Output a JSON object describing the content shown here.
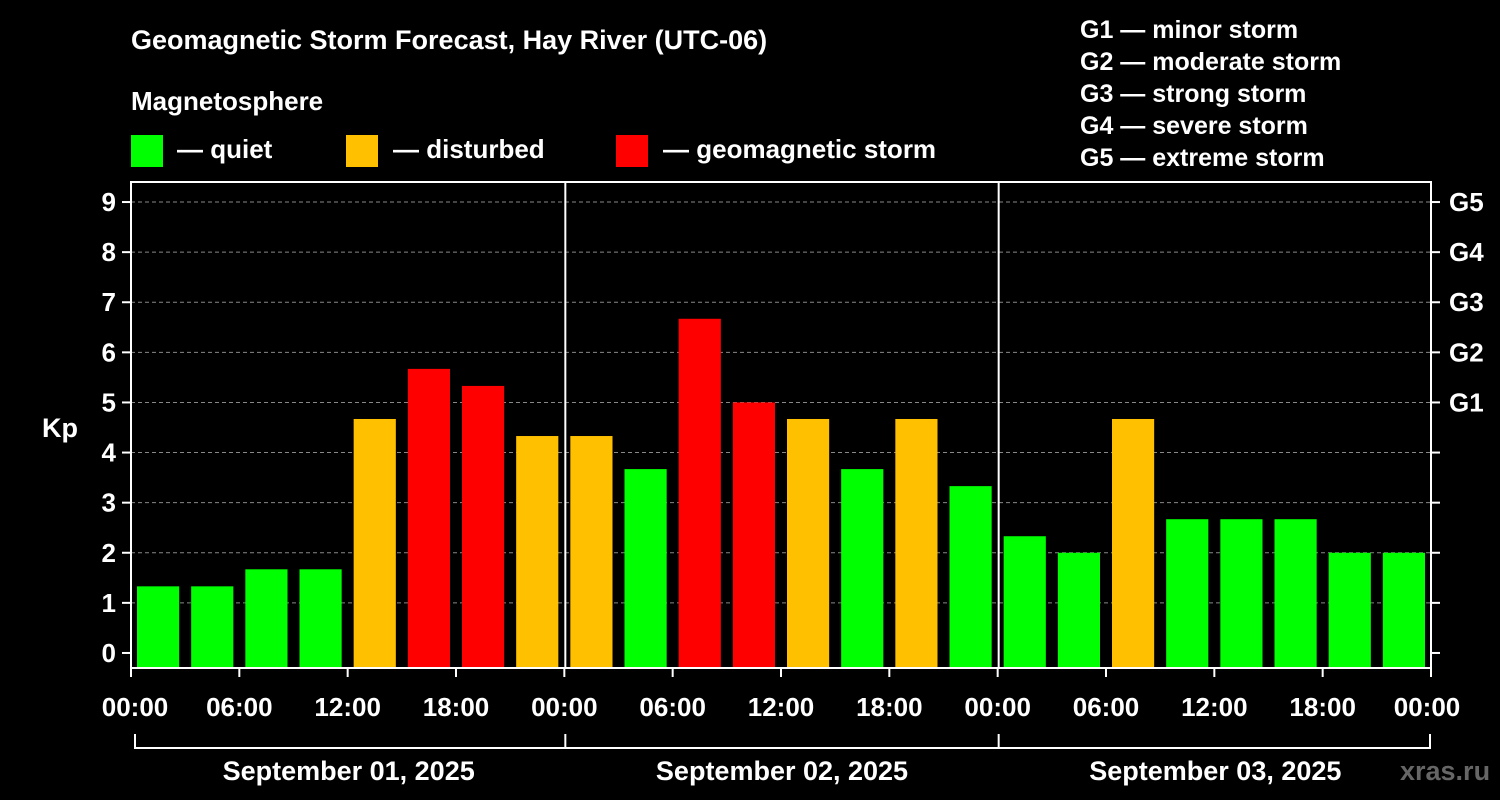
{
  "chart_data": {
    "type": "bar",
    "title": "Geomagnetic Storm Forecast, Hay River (UTC-06)",
    "legend": {
      "heading": "Magnetosphere",
      "items": [
        {
          "label": "— quiet",
          "color": "#00ff00"
        },
        {
          "label": "— disturbed",
          "color": "#ffc000"
        },
        {
          "label": "— geomagnetic storm",
          "color": "#ff0000"
        }
      ]
    },
    "g_scale_legend": [
      "G1 — minor storm",
      "G2 — moderate storm",
      "G3 — strong storm",
      "G4 — severe storm",
      "G5 — extreme storm"
    ],
    "ylabel": "Kp",
    "ylim": [
      -0.3,
      9.4
    ],
    "y_ticks": [
      "0",
      "1",
      "2",
      "3",
      "4",
      "5",
      "6",
      "7",
      "8",
      "9"
    ],
    "right_ticks": [
      {
        "kp": 5,
        "label": "G1"
      },
      {
        "kp": 6,
        "label": "G2"
      },
      {
        "kp": 7,
        "label": "G3"
      },
      {
        "kp": 8,
        "label": "G4"
      },
      {
        "kp": 9,
        "label": "G5"
      }
    ],
    "x_tick_labels": [
      "00:00",
      "06:00",
      "12:00",
      "18:00",
      "00:00",
      "06:00",
      "12:00",
      "18:00",
      "00:00",
      "06:00",
      "12:00",
      "18:00",
      "00:00"
    ],
    "days": [
      "September 01, 2025",
      "September 02, 2025",
      "September 03, 2025"
    ],
    "values": [
      1.33,
      1.33,
      1.67,
      1.67,
      4.67,
      5.67,
      5.33,
      4.33,
      4.33,
      3.67,
      6.67,
      5.0,
      4.67,
      3.67,
      4.67,
      3.33,
      2.33,
      2.0,
      4.67,
      2.67,
      2.67,
      2.67,
      2.0,
      2.0
    ],
    "bar_colors": [
      "#00ff00",
      "#00ff00",
      "#00ff00",
      "#00ff00",
      "#ffc000",
      "#ff0000",
      "#ff0000",
      "#ffc000",
      "#ffc000",
      "#00ff00",
      "#ff0000",
      "#ff0000",
      "#ffc000",
      "#00ff00",
      "#ffc000",
      "#00ff00",
      "#00ff00",
      "#00ff00",
      "#ffc000",
      "#00ff00",
      "#00ff00",
      "#00ff00",
      "#00ff00",
      "#00ff00"
    ],
    "watermark": "xras.ru"
  }
}
